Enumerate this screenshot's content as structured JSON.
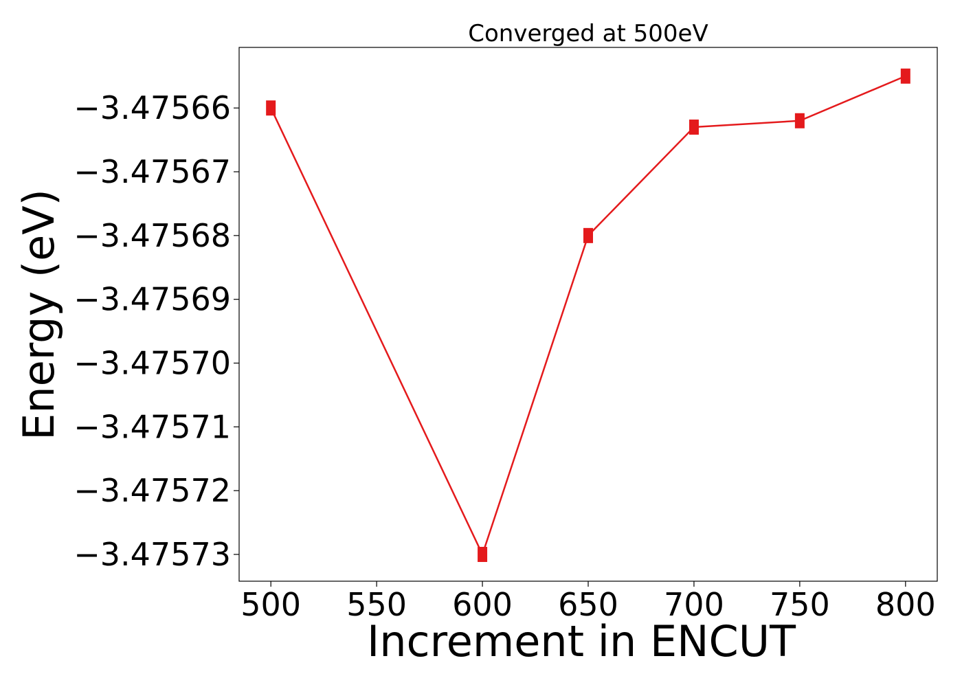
{
  "chart_data": {
    "type": "line",
    "title": "Converged at 500eV",
    "xlabel": "Increment in ENCUT",
    "ylabel": "Energy (eV)",
    "x": [
      500,
      600,
      650,
      700,
      750,
      800
    ],
    "y": [
      -3.47566,
      -3.47573,
      -3.47568,
      -3.475663,
      -3.475662,
      -3.475655
    ],
    "xticks": [
      500,
      550,
      600,
      650,
      700,
      750,
      800
    ],
    "xtick_labels": [
      "500",
      "550",
      "600",
      "650",
      "700",
      "750",
      "800"
    ],
    "yticks": [
      -3.47566,
      -3.47567,
      -3.47568,
      -3.47569,
      -3.4757,
      -3.47571,
      -3.47572,
      -3.47573
    ],
    "ytick_labels": [
      "−3.47566",
      "−3.47567",
      "−3.47568",
      "−3.47569",
      "−3.47570",
      "−3.47571",
      "−3.47572",
      "−3.47573"
    ],
    "xlim": [
      485,
      815
    ],
    "ylim": [
      -3.4757342,
      -3.4756505
    ],
    "grid": false,
    "legend": false,
    "color": "#e41a1c",
    "marker": "square"
  }
}
